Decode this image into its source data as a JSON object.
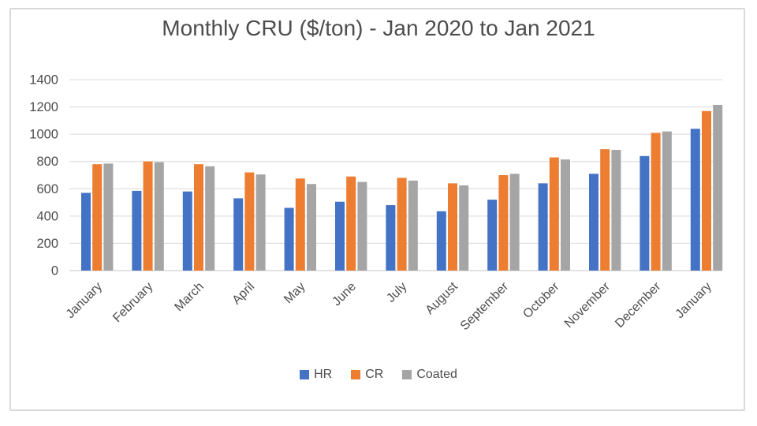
{
  "chart_data": {
    "type": "bar",
    "title": "Monthly CRU ($/ton) - Jan 2020 to Jan 2021",
    "categories": [
      "January",
      "February",
      "March",
      "April",
      "May",
      "June",
      "July",
      "August",
      "September",
      "October",
      "November",
      "December",
      "January"
    ],
    "series": [
      {
        "name": "HR",
        "color": "#4472C4",
        "values": [
          570,
          585,
          580,
          530,
          460,
          505,
          480,
          435,
          520,
          640,
          710,
          840,
          1040
        ]
      },
      {
        "name": "CR",
        "color": "#ED7D31",
        "values": [
          780,
          800,
          780,
          720,
          675,
          690,
          680,
          640,
          700,
          830,
          890,
          1010,
          1170
        ]
      },
      {
        "name": "Coated",
        "color": "#A5A5A5",
        "values": [
          785,
          795,
          765,
          705,
          635,
          650,
          660,
          625,
          710,
          815,
          885,
          1020,
          1215
        ]
      }
    ],
    "ylim": [
      0,
      1400
    ],
    "yticks": [
      0,
      200,
      400,
      600,
      800,
      1000,
      1200,
      1400
    ],
    "xlabel": "",
    "ylabel": "",
    "grid": true,
    "legend_position": "bottom",
    "colors": {
      "gridline": "#d9d9d9",
      "axis_text": "#4d4d4d",
      "title_text": "#4d4d4d",
      "frame_border": "#d9d9d9"
    }
  }
}
